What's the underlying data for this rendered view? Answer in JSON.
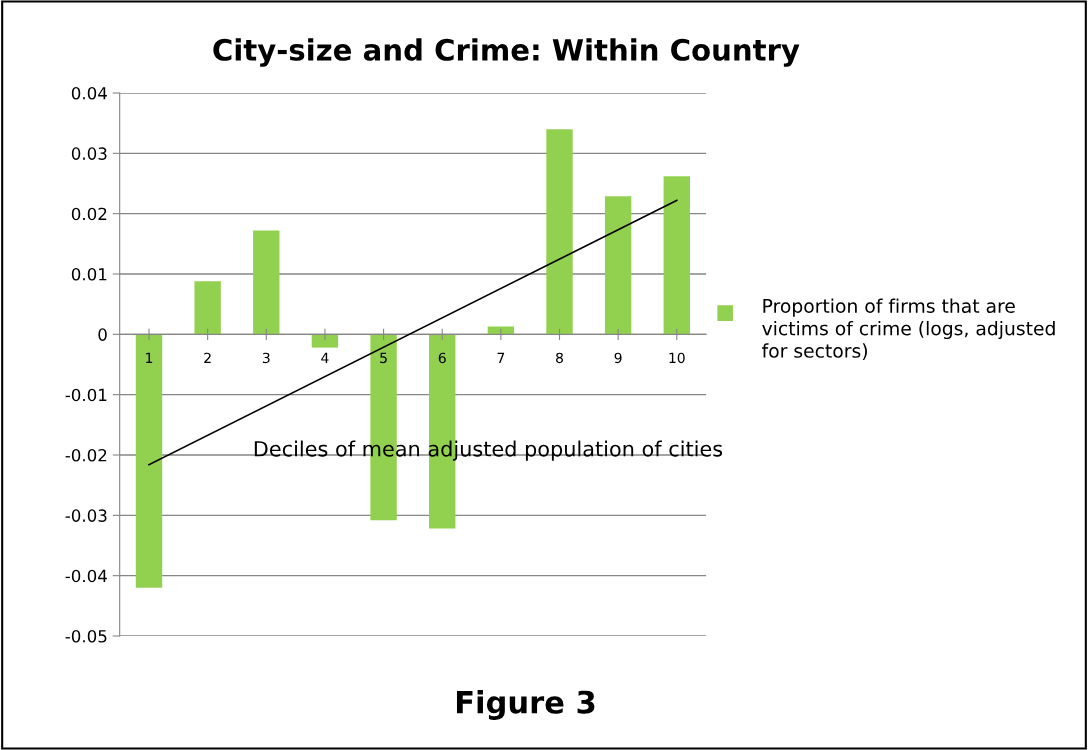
{
  "chart_data": {
    "type": "bar",
    "title": "City-size and Crime: Within Country",
    "xlabel": "Deciles of mean adjusted population of cities",
    "categories": [
      "1",
      "2",
      "3",
      "4",
      "5",
      "6",
      "7",
      "8",
      "9",
      "10"
    ],
    "series": [
      {
        "name": "Proportion of firms that are victims of crime (logs, adjusted for sectors)",
        "color": "#92d050",
        "values": [
          -0.042,
          0.0088,
          0.0172,
          -0.0022,
          -0.0308,
          -0.0322,
          0.0013,
          0.034,
          0.0229,
          0.0262
        ]
      },
      {
        "type": "line",
        "color": "#000000",
        "x": [
          "1",
          "10"
        ],
        "values": [
          -0.0216,
          0.0222
        ]
      }
    ],
    "ylim": [
      -0.05,
      0.04
    ],
    "yticks": [
      -0.05,
      -0.04,
      -0.03,
      -0.02,
      -0.01,
      0,
      0.01,
      0.02,
      0.03,
      0.04
    ],
    "grid": "y",
    "legend": "right",
    "annotations": [
      "Figure 3"
    ]
  }
}
